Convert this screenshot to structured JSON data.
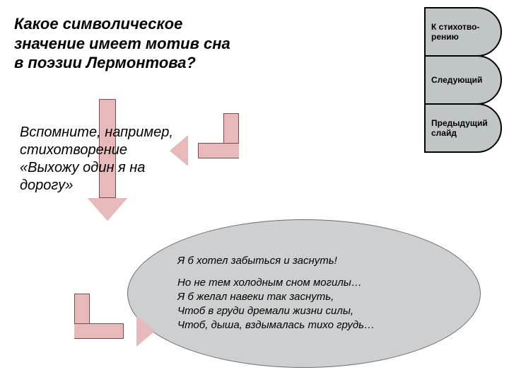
{
  "title": "Какое символическое значение имеет мотив сна в поэзии Лермонтова?",
  "hint": "Вспомните, например, стихотворение «Выхожу один я на дорогу»",
  "nav": {
    "to_poem": "К стихотво-рению",
    "next": "Следующий",
    "prev": "Предыдущий слайд"
  },
  "quote": {
    "line1": "Я б хотел забыться и заснуть!",
    "line2": "Но не тем холодным сном могилы…",
    "line3": "Я б желал навеки так заснуть,",
    "line4": "Чтоб  в груди дремали жизни силы,",
    "line5": "Чтоб, дыша, вздымалась тихо грудь…"
  },
  "colors": {
    "arrow_fill": "#e8b9bb",
    "arrow_border": "#7a4a4c",
    "ellipse_fill": "#cdcfd1",
    "nav_fill": "#c0c6c8",
    "background": "#ffffff"
  }
}
